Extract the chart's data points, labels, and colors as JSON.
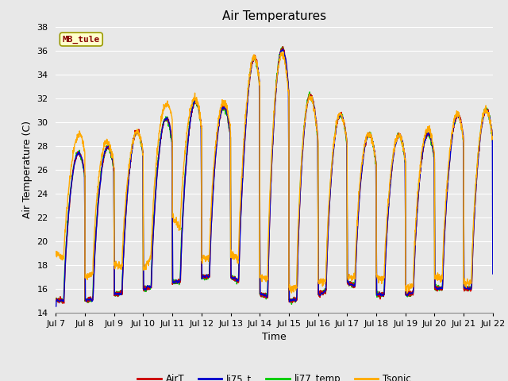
{
  "title": "Air Temperatures",
  "xlabel": "Time",
  "ylabel": "Air Temperature (C)",
  "ylim": [
    14,
    38
  ],
  "yticks": [
    14,
    16,
    18,
    20,
    22,
    24,
    26,
    28,
    30,
    32,
    34,
    36,
    38
  ],
  "xtick_labels": [
    "Jul 7",
    "Jul 8",
    "Jul 9",
    "Jul 10",
    "Jul 11",
    "Jul 12",
    "Jul 13",
    "Jul 14",
    "Jul 15",
    "Jul 16",
    "Jul 17",
    "Jul 18",
    "Jul 19",
    "Jul 20",
    "Jul 21",
    "Jul 22"
  ],
  "series_colors": {
    "AirT": "#cc0000",
    "li75_t": "#0000cc",
    "li77_temp": "#00cc00",
    "Tsonic": "#ffaa00"
  },
  "series_linewidth": 1.0,
  "station_label": "MB_tule",
  "station_label_color": "#880000",
  "station_box_facecolor": "#ffffcc",
  "station_box_edgecolor": "#999900",
  "bg_color": "#e8e8e8",
  "plot_bg_color": "#e8e8e8",
  "grid_color": "#ffffff",
  "title_fontsize": 11,
  "axis_label_fontsize": 9,
  "tick_fontsize": 8,
  "n_days": 15,
  "pts_per_day": 144,
  "day_maxes": [
    27,
    27.5,
    28,
    29.5,
    30.5,
    32,
    31,
    36.5,
    36,
    31,
    30.5,
    28.5,
    29,
    29,
    31
  ],
  "day_mins": [
    15,
    15,
    15.5,
    16,
    16.5,
    17,
    17,
    15.5,
    15,
    15.5,
    16.5,
    15.5,
    15.5,
    16,
    16
  ],
  "tsonic_day_maxes": [
    27,
    29.5,
    28,
    29.5,
    32,
    32,
    31.5,
    36.5,
    35.5,
    31,
    30.5,
    28.5,
    29,
    29.5,
    31
  ],
  "tsonic_day_mins": [
    19,
    17,
    18,
    17.5,
    22,
    18.5,
    19,
    17,
    16,
    16.5,
    17,
    17,
    16,
    17,
    16.5
  ]
}
